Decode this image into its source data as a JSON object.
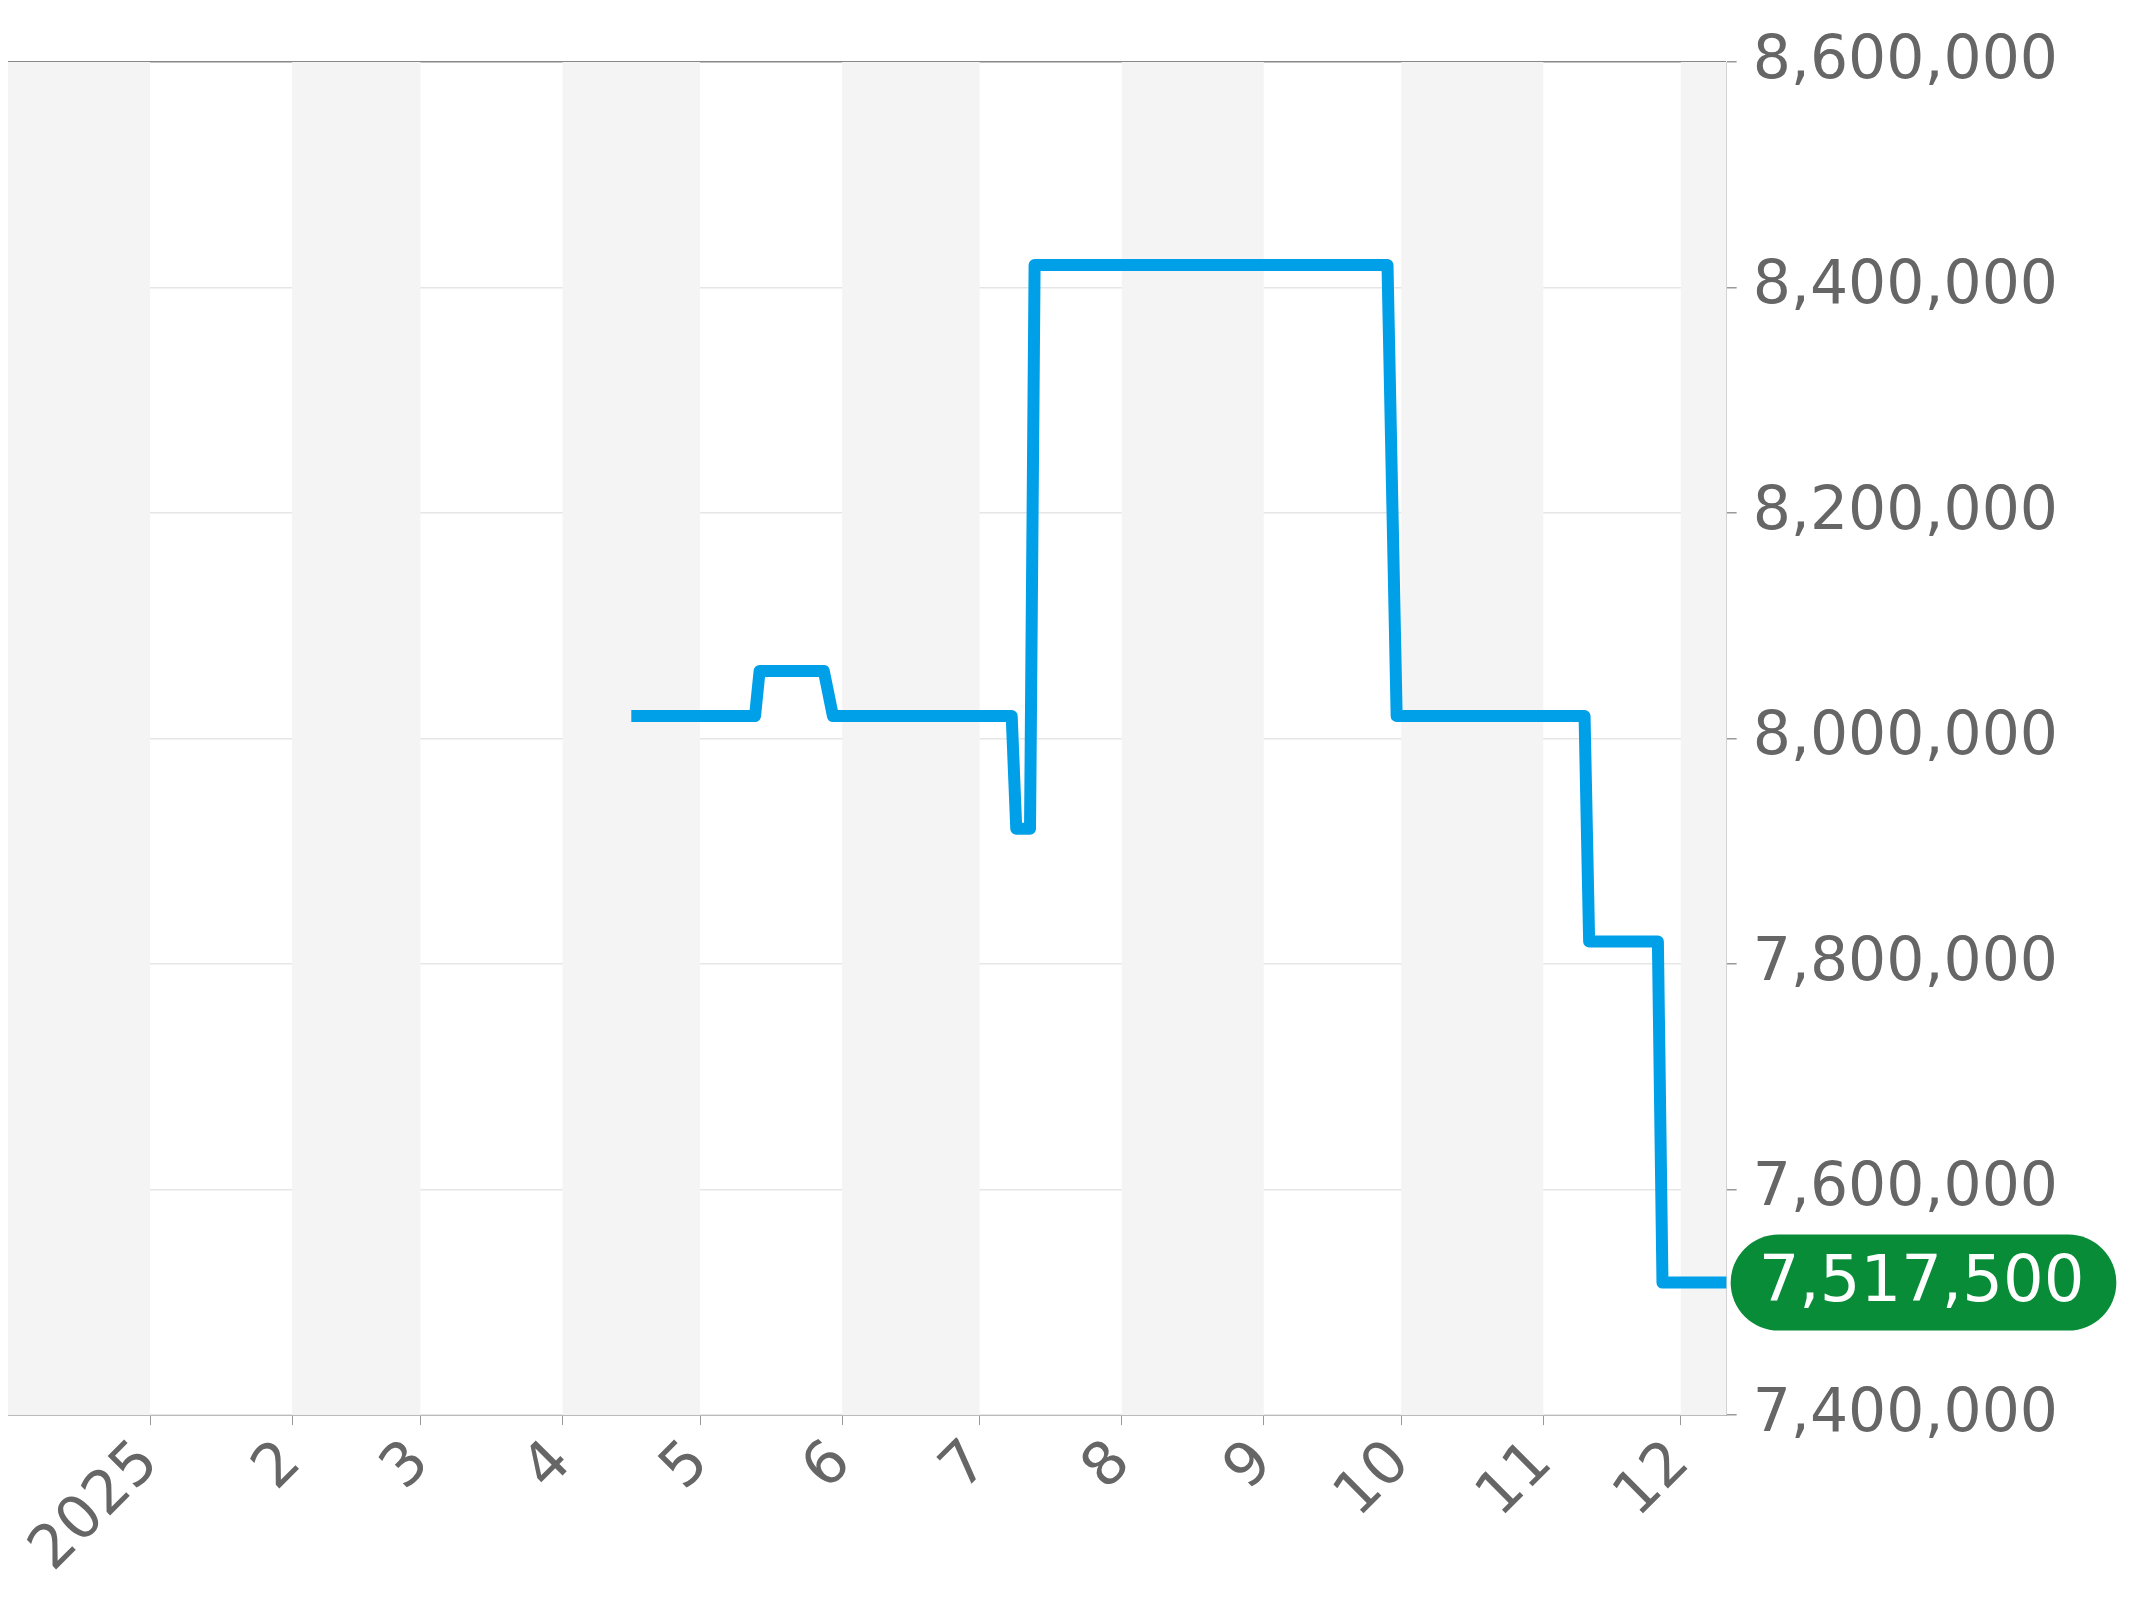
{
  "chart_data": {
    "type": "line",
    "x": [
      "2025-04-16",
      "2025-05-13",
      "2025-05-14",
      "2025-05-28",
      "2025-05-30",
      "2025-07-08",
      "2025-07-09",
      "2025-07-12",
      "2025-07-13",
      "2025-09-28",
      "2025-09-30",
      "2025-11-10",
      "2025-11-11",
      "2025-11-26",
      "2025-11-27",
      "2025-12-11"
    ],
    "series": [
      {
        "color": "#00a0e9",
        "values": [
          8020000,
          8020000,
          8060000,
          8060000,
          8020000,
          8020000,
          7920000,
          7920000,
          8420000,
          8420000,
          8020000,
          8020000,
          7820000,
          7820000,
          7517500,
          7517500
        ]
      }
    ],
    "xlim": [
      "2024-12-01",
      "2025-12-11"
    ],
    "xticks": [
      {
        "value": "2025-01-01",
        "label": "2025"
      },
      {
        "value": "2025-02-01",
        "label": "2"
      },
      {
        "value": "2025-03-01",
        "label": "3"
      },
      {
        "value": "2025-04-01",
        "label": "4"
      },
      {
        "value": "2025-05-01",
        "label": "5"
      },
      {
        "value": "2025-06-01",
        "label": "6"
      },
      {
        "value": "2025-07-01",
        "label": "7"
      },
      {
        "value": "2025-08-01",
        "label": "8"
      },
      {
        "value": "2025-09-01",
        "label": "9"
      },
      {
        "value": "2025-10-01",
        "label": "10"
      },
      {
        "value": "2025-11-01",
        "label": "11"
      },
      {
        "value": "2025-12-01",
        "label": "12"
      }
    ],
    "ylim": [
      7400000,
      8600000
    ],
    "yticks": [
      {
        "value": 7400000,
        "label": "7,400,000"
      },
      {
        "value": 7600000,
        "label": "7,600,000"
      },
      {
        "value": 7800000,
        "label": "7,800,000"
      },
      {
        "value": 8000000,
        "label": "8,000,000"
      },
      {
        "value": 8200000,
        "label": "8,200,000"
      },
      {
        "value": 8400000,
        "label": "8,400,000"
      },
      {
        "value": 8600000,
        "label": "8,600,000"
      }
    ],
    "bands": [
      {
        "axis": "x",
        "from": "2024-12-01",
        "to": "2025-01-01",
        "color": "#f4f4f4"
      },
      {
        "axis": "x",
        "from": "2025-02-01",
        "to": "2025-03-01",
        "color": "#f4f4f4"
      },
      {
        "axis": "x",
        "from": "2025-04-01",
        "to": "2025-05-01",
        "color": "#f4f4f4"
      },
      {
        "axis": "x",
        "from": "2025-06-01",
        "to": "2025-07-01",
        "color": "#f4f4f4"
      },
      {
        "axis": "x",
        "from": "2025-08-01",
        "to": "2025-09-01",
        "color": "#f4f4f4"
      },
      {
        "axis": "x",
        "from": "2025-10-01",
        "to": "2025-11-01",
        "color": "#f4f4f4"
      },
      {
        "axis": "x",
        "from": "2025-12-01",
        "to": "2025-12-11",
        "color": "#f4f4f4"
      }
    ],
    "annotations": [
      {
        "text": "7,517,500",
        "x": "2025-12-11",
        "y": 7517500
      }
    ],
    "grid": "y",
    "marker": "none",
    "line_style": "solid",
    "legend": false
  }
}
